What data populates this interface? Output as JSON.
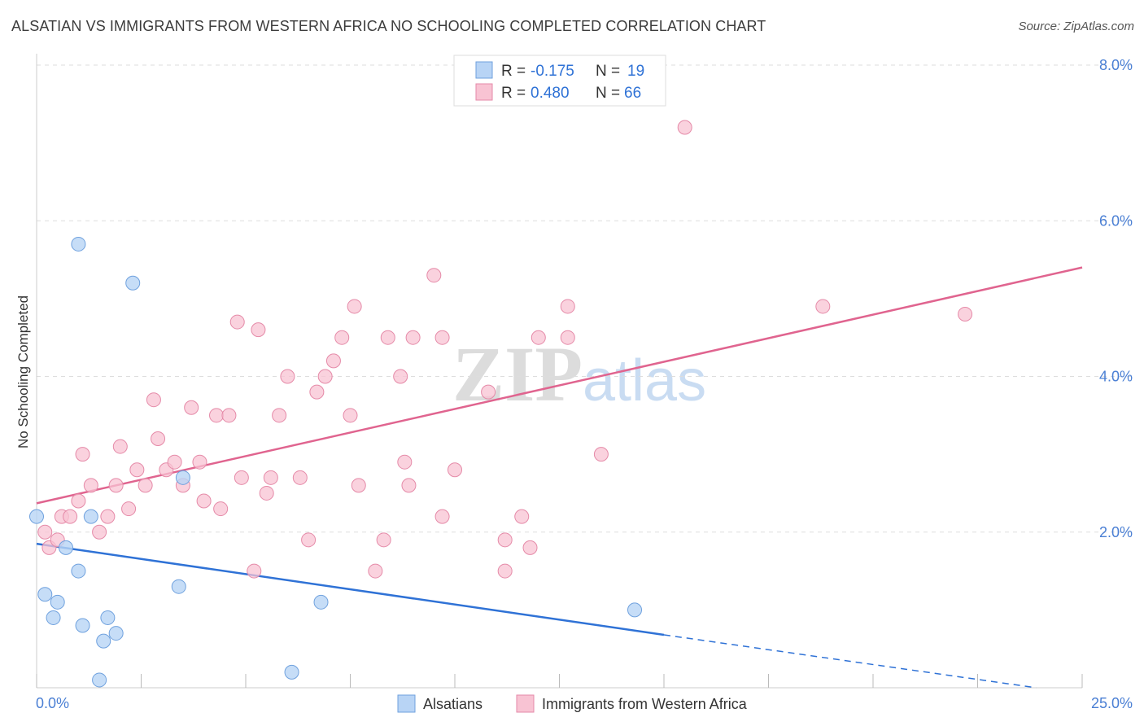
{
  "header": {
    "title": "ALSATIAN VS IMMIGRANTS FROM WESTERN AFRICA NO SCHOOLING COMPLETED CORRELATION CHART",
    "source": "Source: ZipAtlas.com"
  },
  "watermark": {
    "zip": "ZIP",
    "atlas": "atlas"
  },
  "colors": {
    "blue_fill": "#b8d4f5",
    "blue_stroke": "#6fa1de",
    "blue_line": "#2f72d6",
    "pink_fill": "#f8c3d3",
    "pink_stroke": "#e58aa8",
    "pink_line": "#e0648f",
    "tick_label": "#4a7fd4",
    "grid": "#dddddd"
  },
  "chart_data": {
    "type": "scatter",
    "title": "ALSATIAN VS IMMIGRANTS FROM WESTERN AFRICA NO SCHOOLING COMPLETED CORRELATION CHART",
    "ylabel": "No Schooling Completed",
    "xlim": [
      0,
      25
    ],
    "ylim": [
      0,
      8
    ],
    "x_tick_labels": [
      "0.0%",
      "25.0%"
    ],
    "y_ticks": [
      2,
      4,
      6,
      8
    ],
    "y_tick_labels": [
      "2.0%",
      "4.0%",
      "6.0%",
      "8.0%"
    ],
    "grid": true,
    "legend_top": [
      {
        "r_label": "R =",
        "r_value": "-0.175",
        "n_label": "N =",
        "n_value": "19"
      },
      {
        "r_label": "R =",
        "r_value": "0.480",
        "n_label": "N =",
        "n_value": "66"
      }
    ],
    "series": [
      {
        "name": "Alsatians",
        "points": [
          [
            0.0,
            2.2
          ],
          [
            0.7,
            1.8
          ],
          [
            1.0,
            5.7
          ],
          [
            1.3,
            2.2
          ],
          [
            1.0,
            1.5
          ],
          [
            0.2,
            1.2
          ],
          [
            0.5,
            1.1
          ],
          [
            0.4,
            0.9
          ],
          [
            1.1,
            0.8
          ],
          [
            1.7,
            0.9
          ],
          [
            1.9,
            0.7
          ],
          [
            1.6,
            0.6
          ],
          [
            1.5,
            0.1
          ],
          [
            2.3,
            5.2
          ],
          [
            3.5,
            2.7
          ],
          [
            3.4,
            1.3
          ],
          [
            6.1,
            0.2
          ],
          [
            6.8,
            1.1
          ],
          [
            14.3,
            1.0
          ]
        ],
        "trend": {
          "x0": 0,
          "y0": 1.85,
          "x1": 15.0,
          "y1": 0.68,
          "dash_x1": 23.9,
          "dash_y1": 0.0
        }
      },
      {
        "name": "Immigrants from Western Africa",
        "points": [
          [
            0.2,
            2.0
          ],
          [
            0.3,
            1.8
          ],
          [
            0.5,
            1.9
          ],
          [
            0.6,
            2.2
          ],
          [
            0.8,
            2.2
          ],
          [
            1.0,
            2.4
          ],
          [
            1.1,
            3.0
          ],
          [
            1.3,
            2.6
          ],
          [
            1.5,
            2.0
          ],
          [
            1.7,
            2.2
          ],
          [
            1.9,
            2.6
          ],
          [
            2.0,
            3.1
          ],
          [
            2.2,
            2.3
          ],
          [
            2.4,
            2.8
          ],
          [
            2.6,
            2.6
          ],
          [
            2.8,
            3.7
          ],
          [
            2.9,
            3.2
          ],
          [
            3.1,
            2.8
          ],
          [
            3.3,
            2.9
          ],
          [
            3.5,
            2.6
          ],
          [
            3.7,
            3.6
          ],
          [
            3.9,
            2.9
          ],
          [
            4.0,
            2.4
          ],
          [
            4.3,
            3.5
          ],
          [
            4.4,
            2.3
          ],
          [
            4.6,
            3.5
          ],
          [
            4.8,
            4.7
          ],
          [
            4.9,
            2.7
          ],
          [
            5.2,
            1.5
          ],
          [
            5.3,
            4.6
          ],
          [
            5.5,
            2.5
          ],
          [
            5.6,
            2.7
          ],
          [
            5.8,
            3.5
          ],
          [
            6.0,
            4.0
          ],
          [
            6.3,
            2.7
          ],
          [
            6.5,
            1.9
          ],
          [
            6.7,
            3.8
          ],
          [
            6.9,
            4.0
          ],
          [
            7.1,
            4.2
          ],
          [
            7.3,
            4.5
          ],
          [
            7.5,
            3.5
          ],
          [
            7.6,
            4.9
          ],
          [
            7.7,
            2.6
          ],
          [
            8.1,
            1.5
          ],
          [
            8.3,
            1.9
          ],
          [
            8.4,
            4.5
          ],
          [
            8.7,
            4.0
          ],
          [
            8.8,
            2.9
          ],
          [
            8.9,
            2.6
          ],
          [
            9.0,
            4.5
          ],
          [
            9.5,
            5.3
          ],
          [
            9.7,
            4.5
          ],
          [
            9.7,
            2.2
          ],
          [
            10.0,
            2.8
          ],
          [
            10.8,
            3.8
          ],
          [
            11.2,
            1.9
          ],
          [
            11.2,
            1.5
          ],
          [
            11.6,
            2.2
          ],
          [
            11.8,
            1.8
          ],
          [
            12.0,
            4.5
          ],
          [
            12.7,
            4.5
          ],
          [
            12.7,
            4.9
          ],
          [
            13.5,
            3.0
          ],
          [
            15.5,
            7.2
          ],
          [
            18.8,
            4.9
          ],
          [
            22.2,
            4.8
          ]
        ],
        "trend": {
          "x0": 0,
          "y0": 2.37,
          "x1": 25.0,
          "y1": 5.4
        }
      }
    ],
    "legend_bottom": [
      "Alsatians",
      "Immigrants from Western Africa"
    ]
  }
}
